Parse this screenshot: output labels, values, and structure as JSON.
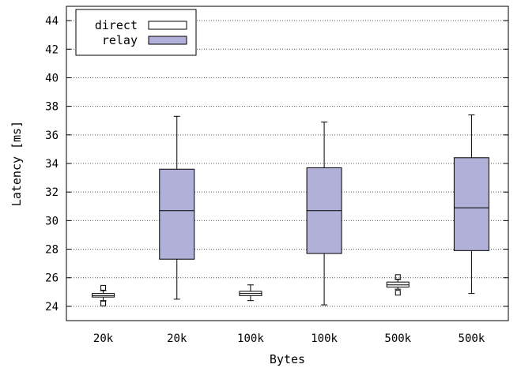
{
  "chart_data": {
    "type": "box",
    "title": "",
    "xlabel": "Bytes",
    "ylabel": "Latency [ms]",
    "ylim": [
      23,
      45
    ],
    "yticks": [
      24,
      26,
      28,
      30,
      32,
      34,
      36,
      38,
      40,
      42,
      44
    ],
    "grid": "horizontal-dotted",
    "legend_position": "top-left",
    "colors": {
      "direct": "#ffffff",
      "relay": "#b0b0d8",
      "outline": "#000000"
    },
    "series": [
      {
        "name": "direct"
      },
      {
        "name": "relay"
      }
    ],
    "categories": [
      "20k",
      "20k",
      "100k",
      "100k",
      "500k",
      "500k"
    ],
    "boxes": [
      {
        "category": "20k",
        "series": "direct",
        "whisker_low": 24.4,
        "q1": 24.65,
        "median": 24.75,
        "q3": 24.9,
        "whisker_high": 25.1,
        "outliers": [
          24.2,
          25.3
        ]
      },
      {
        "category": "20k",
        "series": "relay",
        "whisker_low": 24.5,
        "q1": 27.3,
        "median": 30.7,
        "q3": 33.6,
        "whisker_high": 37.3,
        "outliers": []
      },
      {
        "category": "100k",
        "series": "direct",
        "whisker_low": 24.4,
        "q1": 24.75,
        "median": 24.9,
        "q3": 25.05,
        "whisker_high": 25.5,
        "outliers": []
      },
      {
        "category": "100k",
        "series": "relay",
        "whisker_low": 24.1,
        "q1": 27.7,
        "median": 30.7,
        "q3": 33.7,
        "whisker_high": 36.9,
        "outliers": []
      },
      {
        "category": "500k",
        "series": "direct",
        "whisker_low": 25.2,
        "q1": 25.35,
        "median": 25.5,
        "q3": 25.7,
        "whisker_high": 25.9,
        "outliers": [
          24.95,
          26.05
        ]
      },
      {
        "category": "500k",
        "series": "relay",
        "whisker_low": 24.9,
        "q1": 27.9,
        "median": 30.9,
        "q3": 34.4,
        "whisker_high": 37.4,
        "outliers": []
      }
    ]
  }
}
